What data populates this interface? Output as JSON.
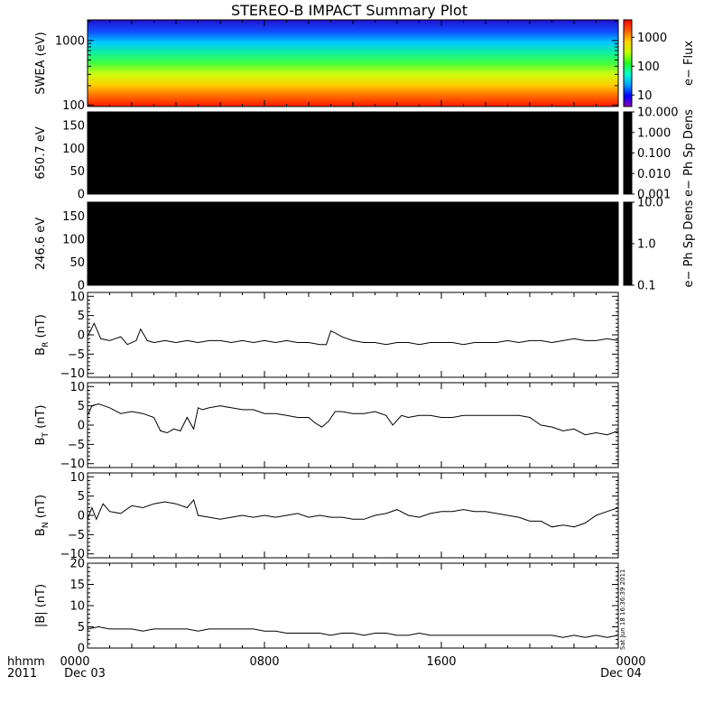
{
  "title": "STEREO-B IMPACT Summary Plot",
  "stamp": "Sat Jun 18 16:36:39 2011",
  "x_axis": {
    "ticks": [
      {
        "label": "0000",
        "sub": "Dec 03",
        "hour": 0
      },
      {
        "label": "0800",
        "sub": "",
        "hour": 8
      },
      {
        "label": "1600",
        "sub": "",
        "hour": 16
      },
      {
        "label": "0000",
        "sub": "Dec 04",
        "hour": 24
      }
    ],
    "left_label": "hhmm",
    "left_year": "2011",
    "range_hours": [
      0,
      24
    ]
  },
  "chart_data": [
    {
      "type": "heatmap",
      "name": "swea",
      "ylabel": "SWEA (eV)",
      "yscale": "log",
      "ylim": [
        95,
        2100
      ],
      "yticks": [
        {
          "v": 100,
          "label": "100"
        },
        {
          "v": 1000,
          "label": "1000"
        }
      ],
      "colorbar": {
        "label": "e− Flux",
        "scale": "log",
        "range": [
          4,
          4000
        ],
        "ticks": [
          {
            "v": 10,
            "label": "10"
          },
          {
            "v": 100,
            "label": "100"
          },
          {
            "v": 1000,
            "label": "1000"
          }
        ]
      }
    },
    {
      "type": "heatmap",
      "name": "pad650",
      "ylabel": "650.7 eV",
      "ylim": [
        0,
        180
      ],
      "yticks": [
        {
          "v": 0,
          "label": "0"
        },
        {
          "v": 50,
          "label": "50"
        },
        {
          "v": 100,
          "label": "100"
        },
        {
          "v": 150,
          "label": "150"
        }
      ],
      "fill": "#000000",
      "colorbar": {
        "label": "e− Ph Sp Dens",
        "scale": "log",
        "range": [
          0.001,
          10
        ],
        "ticks": [
          {
            "v": 10,
            "label": "10.000"
          },
          {
            "v": 1,
            "label": "1.000"
          },
          {
            "v": 0.1,
            "label": "0.100"
          },
          {
            "v": 0.01,
            "label": "0.010"
          },
          {
            "v": 0.001,
            "label": "0.001"
          }
        ]
      }
    },
    {
      "type": "heatmap",
      "name": "pad246",
      "ylabel": "246.6 eV",
      "ylim": [
        0,
        180
      ],
      "yticks": [
        {
          "v": 0,
          "label": "0"
        },
        {
          "v": 50,
          "label": "50"
        },
        {
          "v": 100,
          "label": "100"
        },
        {
          "v": 150,
          "label": "150"
        }
      ],
      "fill": "#000000",
      "colorbar": {
        "label": "e− Ph Sp Dens",
        "scale": "log",
        "range": [
          0.1,
          10
        ],
        "ticks": [
          {
            "v": 10,
            "label": "10.0"
          },
          {
            "v": 1,
            "label": "1.0"
          },
          {
            "v": 0.1,
            "label": "0.1"
          }
        ]
      }
    },
    {
      "type": "line",
      "name": "br",
      "ylabel": "B",
      "ysub": "R",
      "yunit": " (nT)",
      "ylim": [
        -11,
        11
      ],
      "yticks": [
        {
          "v": 10,
          "label": "10"
        },
        {
          "v": 5,
          "label": "5"
        },
        {
          "v": 0,
          "label": "0"
        },
        {
          "v": -5,
          "label": "−5"
        },
        {
          "v": -10,
          "label": "−10"
        }
      ],
      "x": [
        0,
        0.3,
        0.6,
        1.0,
        1.5,
        1.8,
        2.2,
        2.4,
        2.7,
        3.0,
        3.5,
        4.0,
        4.5,
        5.0,
        5.5,
        6.0,
        6.5,
        7.0,
        7.5,
        8.0,
        8.5,
        9.0,
        9.5,
        10.0,
        10.5,
        10.8,
        11.0,
        11.2,
        11.5,
        12.0,
        12.5,
        13.0,
        13.5,
        14.0,
        14.5,
        15.0,
        15.5,
        16.0,
        16.5,
        17.0,
        17.5,
        18.0,
        18.5,
        19.0,
        19.5,
        20.0,
        20.5,
        21.0,
        21.5,
        22.0,
        22.5,
        23.0,
        23.5,
        24.0
      ],
      "y": [
        -0.5,
        3.0,
        -1.0,
        -1.5,
        -0.5,
        -2.5,
        -1.5,
        1.5,
        -1.5,
        -2.0,
        -1.5,
        -2.0,
        -1.5,
        -2.0,
        -1.5,
        -1.5,
        -2.0,
        -1.5,
        -2.0,
        -1.5,
        -2.0,
        -1.5,
        -2.0,
        -2.0,
        -2.5,
        -2.5,
        1.0,
        0.5,
        -0.5,
        -1.5,
        -2.0,
        -2.0,
        -2.5,
        -2.0,
        -2.0,
        -2.5,
        -2.0,
        -2.0,
        -2.0,
        -2.5,
        -2.0,
        -2.0,
        -2.0,
        -1.5,
        -2.0,
        -1.5,
        -1.5,
        -2.0,
        -1.5,
        -1.0,
        -1.5,
        -1.5,
        -1.0,
        -1.5
      ]
    },
    {
      "type": "line",
      "name": "bt",
      "ylabel": "B",
      "ysub": "T",
      "yunit": " (nT)",
      "ylim": [
        -11,
        11
      ],
      "yticks": [
        {
          "v": 10,
          "label": "10"
        },
        {
          "v": 5,
          "label": "5"
        },
        {
          "v": 0,
          "label": "0"
        },
        {
          "v": -5,
          "label": "−5"
        },
        {
          "v": -10,
          "label": "−10"
        }
      ],
      "x": [
        0,
        0.2,
        0.5,
        1.0,
        1.5,
        2.0,
        2.5,
        3.0,
        3.3,
        3.6,
        3.9,
        4.2,
        4.5,
        4.8,
        5.0,
        5.2,
        5.5,
        6.0,
        6.5,
        7.0,
        7.5,
        8.0,
        8.5,
        9.0,
        9.5,
        10.0,
        10.3,
        10.6,
        10.9,
        11.2,
        11.5,
        12.0,
        12.5,
        13.0,
        13.5,
        13.8,
        14.2,
        14.5,
        15.0,
        15.5,
        16.0,
        16.5,
        17.0,
        17.5,
        18.0,
        18.5,
        19.0,
        19.5,
        20.0,
        20.5,
        21.0,
        21.5,
        22.0,
        22.5,
        23.0,
        23.5,
        24.0
      ],
      "y": [
        2.5,
        5.0,
        5.5,
        4.5,
        3.0,
        3.5,
        3.0,
        2.0,
        -1.5,
        -2.0,
        -1.0,
        -1.5,
        2.0,
        -1.0,
        4.5,
        4.0,
        4.5,
        5.0,
        4.5,
        4.0,
        4.0,
        3.0,
        3.0,
        2.5,
        2.0,
        2.0,
        0.5,
        -0.5,
        1.0,
        3.5,
        3.5,
        3.0,
        3.0,
        3.5,
        2.5,
        0.0,
        2.5,
        2.0,
        2.5,
        2.5,
        2.0,
        2.0,
        2.5,
        2.5,
        2.5,
        2.5,
        2.5,
        2.5,
        2.0,
        0.0,
        -0.5,
        -1.5,
        -1.0,
        -2.5,
        -2.0,
        -2.5,
        -1.5
      ]
    },
    {
      "type": "line",
      "name": "bn",
      "ylabel": "B",
      "ysub": "N",
      "yunit": " (nT)",
      "ylim": [
        -11,
        11
      ],
      "yticks": [
        {
          "v": 10,
          "label": "10"
        },
        {
          "v": 5,
          "label": "5"
        },
        {
          "v": 0,
          "label": "0"
        },
        {
          "v": -5,
          "label": "−5"
        },
        {
          "v": -10,
          "label": "−10"
        }
      ],
      "x": [
        0,
        0.2,
        0.4,
        0.7,
        1.0,
        1.5,
        2.0,
        2.5,
        3.0,
        3.5,
        4.0,
        4.5,
        4.8,
        5.0,
        5.5,
        6.0,
        6.5,
        7.0,
        7.5,
        8.0,
        8.5,
        9.0,
        9.5,
        10.0,
        10.5,
        11.0,
        11.5,
        12.0,
        12.5,
        13.0,
        13.5,
        14.0,
        14.5,
        15.0,
        15.5,
        16.0,
        16.5,
        17.0,
        17.5,
        18.0,
        18.5,
        19.0,
        19.5,
        20.0,
        20.5,
        21.0,
        21.5,
        22.0,
        22.5,
        23.0,
        23.5,
        24.0
      ],
      "y": [
        -1.0,
        2.0,
        -1.0,
        3.0,
        1.0,
        0.5,
        2.5,
        2.0,
        3.0,
        3.5,
        3.0,
        2.0,
        4.0,
        0.0,
        -0.5,
        -1.0,
        -0.5,
        0.0,
        -0.5,
        0.0,
        -0.5,
        0.0,
        0.5,
        -0.5,
        0.0,
        -0.5,
        -0.5,
        -1.0,
        -1.0,
        0.0,
        0.5,
        1.5,
        0.0,
        -0.5,
        0.5,
        1.0,
        1.0,
        1.5,
        1.0,
        1.0,
        0.5,
        0.0,
        -0.5,
        -1.5,
        -1.5,
        -3.0,
        -2.5,
        -3.0,
        -2.0,
        0.0,
        1.0,
        2.0
      ]
    },
    {
      "type": "line",
      "name": "bmag",
      "ylabel": "|B| (nT)",
      "ylim": [
        0,
        20
      ],
      "yticks": [
        {
          "v": 0,
          "label": "0"
        },
        {
          "v": 5,
          "label": "5"
        },
        {
          "v": 10,
          "label": "10"
        },
        {
          "v": 15,
          "label": "15"
        },
        {
          "v": 20,
          "label": "20"
        }
      ],
      "x": [
        0,
        0.5,
        1.0,
        1.5,
        2.0,
        2.5,
        3.0,
        3.5,
        4.0,
        4.5,
        5.0,
        5.5,
        6.0,
        6.5,
        7.0,
        7.5,
        8.0,
        8.5,
        9.0,
        9.5,
        10.0,
        10.5,
        11.0,
        11.5,
        12.0,
        12.5,
        13.0,
        13.5,
        14.0,
        14.5,
        15.0,
        15.5,
        16.0,
        16.5,
        17.0,
        17.5,
        18.0,
        18.5,
        19.0,
        19.5,
        20.0,
        20.5,
        21.0,
        21.5,
        22.0,
        22.5,
        23.0,
        23.5,
        24.0
      ],
      "y": [
        4.5,
        5.0,
        4.5,
        4.5,
        4.5,
        4.0,
        4.5,
        4.5,
        4.5,
        4.5,
        4.0,
        4.5,
        4.5,
        4.5,
        4.5,
        4.5,
        4.0,
        4.0,
        3.5,
        3.5,
        3.5,
        3.5,
        3.0,
        3.5,
        3.5,
        3.0,
        3.5,
        3.5,
        3.0,
        3.0,
        3.5,
        3.0,
        3.0,
        3.0,
        3.0,
        3.0,
        3.0,
        3.0,
        3.0,
        3.0,
        3.0,
        3.0,
        3.0,
        2.5,
        3.0,
        2.5,
        3.0,
        2.5,
        3.0
      ]
    }
  ]
}
